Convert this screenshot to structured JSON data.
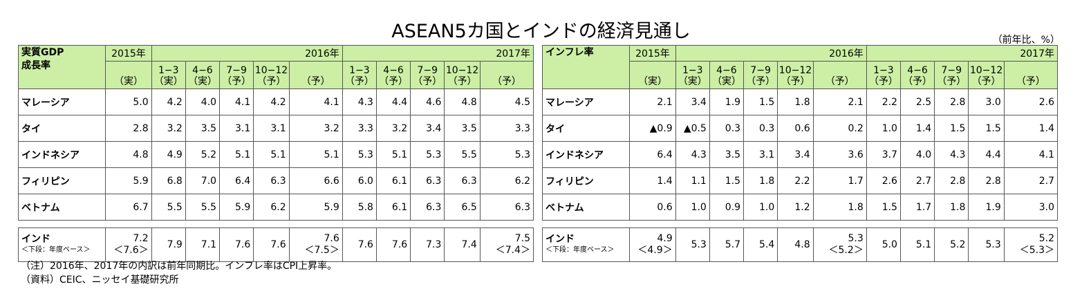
{
  "title": "ASEAN5カ国とインドの経済見通し",
  "unit": "（前年比、%）",
  "tables": [
    {
      "corner": [
        "実質GDP",
        "成長率"
      ],
      "year2015": "2015年",
      "year2016": "2016年",
      "year2017": "2017年",
      "col_labels": [
        "（実）",
        "1−3 （実）",
        "4−6 （実）",
        "7−9 （予）",
        "10−12 （予）",
        "（予）",
        "1−3 （予）",
        "4−6 （予）",
        "7−9 （予）",
        "10−12 （予）",
        "（予）"
      ],
      "col_top": [
        "",
        "1−3",
        "4−6",
        "7−9",
        "10−12",
        "",
        "1−3",
        "4−6",
        "7−9",
        "10−12",
        ""
      ],
      "col_bottom": [
        "（実）",
        "（実）",
        "（実）",
        "（予）",
        "（予）",
        "（予）",
        "（予）",
        "（予）",
        "（予）",
        "（予）",
        "（予）"
      ],
      "rows": [
        {
          "label": "マレーシア",
          "values": [
            "5.0",
            "4.2",
            "4.0",
            "4.1",
            "4.2",
            "4.1",
            "4.3",
            "4.4",
            "4.6",
            "4.8",
            "4.5"
          ]
        },
        {
          "label": "タイ",
          "values": [
            "2.8",
            "3.2",
            "3.5",
            "3.1",
            "3.1",
            "3.2",
            "3.3",
            "3.2",
            "3.4",
            "3.5",
            "3.3"
          ]
        },
        {
          "label": "インドネシア",
          "values": [
            "4.8",
            "4.9",
            "5.2",
            "5.1",
            "5.1",
            "5.1",
            "5.3",
            "5.1",
            "5.3",
            "5.5",
            "5.3"
          ]
        },
        {
          "label": "フィリピン",
          "values": [
            "5.9",
            "6.8",
            "7.0",
            "6.4",
            "6.3",
            "6.6",
            "6.0",
            "6.1",
            "6.3",
            "6.3",
            "6.2"
          ]
        },
        {
          "label": "ベトナム",
          "values": [
            "6.7",
            "5.5",
            "5.5",
            "5.9",
            "6.2",
            "5.9",
            "5.8",
            "6.1",
            "6.3",
            "6.5",
            "6.3"
          ]
        }
      ],
      "india": {
        "label": "インド",
        "sublabel": "＜下段：年度ベース＞",
        "values": [
          "7.2",
          "7.9",
          "7.1",
          "7.6",
          "7.6",
          "7.6",
          "7.6",
          "7.6",
          "7.3",
          "7.4",
          "7.5"
        ],
        "fy": [
          "＜7.6＞",
          "",
          "",
          "",
          "",
          "＜7.5＞",
          "",
          "",
          "",
          "",
          "＜7.4＞"
        ]
      }
    },
    {
      "corner": [
        "インフレ率",
        ""
      ],
      "year2015": "2015年",
      "year2016": "2016年",
      "year2017": "2017年",
      "col_top": [
        "",
        "1−3",
        "4−6",
        "7−9",
        "10−12",
        "",
        "1−3",
        "4−6",
        "7−9",
        "10−12",
        ""
      ],
      "col_bottom": [
        "（実）",
        "（実）",
        "（実）",
        "（予）",
        "（予）",
        "（予）",
        "（予）",
        "（予）",
        "（予）",
        "（予）",
        "（予）"
      ],
      "rows": [
        {
          "label": "マレーシア",
          "values": [
            "2.1",
            "3.4",
            "1.9",
            "1.5",
            "1.8",
            "2.1",
            "2.2",
            "2.5",
            "2.8",
            "3.0",
            "2.6"
          ]
        },
        {
          "label": "タイ",
          "values": [
            "▲0.9",
            "▲0.5",
            "0.3",
            "0.3",
            "0.6",
            "0.2",
            "1.0",
            "1.4",
            "1.5",
            "1.5",
            "1.4"
          ]
        },
        {
          "label": "インドネシア",
          "values": [
            "6.4",
            "4.3",
            "3.5",
            "3.1",
            "3.4",
            "3.6",
            "3.7",
            "4.0",
            "4.3",
            "4.4",
            "4.1"
          ]
        },
        {
          "label": "フィリピン",
          "values": [
            "1.4",
            "1.1",
            "1.5",
            "1.8",
            "2.2",
            "1.7",
            "2.6",
            "2.7",
            "2.8",
            "2.8",
            "2.7"
          ]
        },
        {
          "label": "ベトナム",
          "values": [
            "0.6",
            "1.0",
            "0.9",
            "1.0",
            "1.2",
            "1.8",
            "1.5",
            "1.7",
            "1.8",
            "1.9",
            "3.0"
          ]
        }
      ],
      "india": {
        "label": "インド",
        "sublabel": "＜下段：年度ベース＞",
        "values": [
          "4.9",
          "5.3",
          "5.7",
          "5.4",
          "4.8",
          "5.3",
          "5.0",
          "5.1",
          "5.2",
          "5.3",
          "5.2"
        ],
        "fy": [
          "＜4.9＞",
          "",
          "",
          "",
          "",
          "＜5.2＞",
          "",
          "",
          "",
          "",
          "＜5.3＞"
        ]
      }
    }
  ],
  "notes": [
    "（注）2016年、2017年の内訳は前年同期比。インフレ率はCPI上昇率。",
    "（資料）CEIC、ニッセイ基礎研究所"
  ]
}
